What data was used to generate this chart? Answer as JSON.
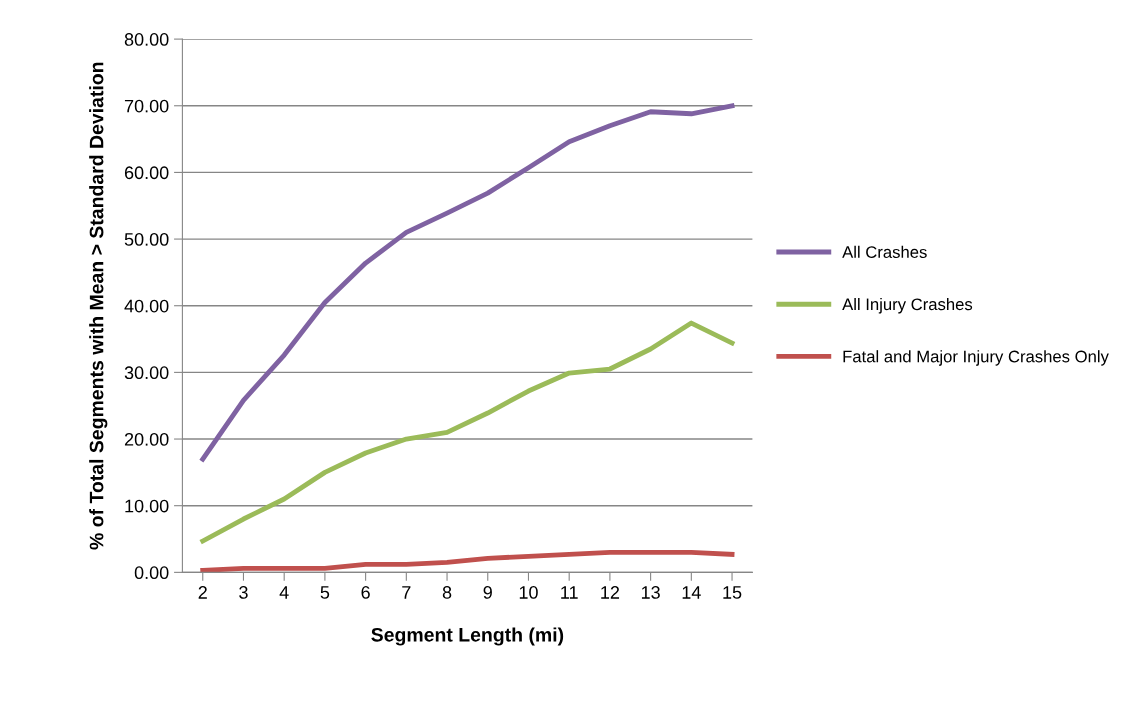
{
  "chart_data": {
    "type": "line",
    "xlabel": "Segment Length (mi)",
    "ylabel": "% of Total Segments with Mean > Standard Deviation",
    "categories": [
      "2",
      "3",
      "4",
      "5",
      "6",
      "7",
      "8",
      "9",
      "10",
      "11",
      "12",
      "13",
      "14",
      "15"
    ],
    "series": [
      {
        "name": "All Crashes",
        "color": "#7f62a2",
        "values": [
          17.0,
          25.8,
          32.6,
          40.5,
          46.4,
          51.0,
          53.9,
          56.9,
          60.7,
          64.6,
          67.0,
          69.1,
          68.8,
          70.0
        ]
      },
      {
        "name": "All Injury Crashes",
        "color": "#9bbb59",
        "values": [
          4.7,
          8.0,
          11.0,
          15.0,
          17.9,
          20.0,
          21.0,
          23.9,
          27.2,
          29.9,
          30.5,
          33.5,
          37.4,
          34.4
        ]
      },
      {
        "name": "Fatal and Major Injury Crashes Only",
        "color": "#c0504d",
        "values": [
          0.3,
          0.6,
          0.6,
          0.6,
          1.2,
          1.2,
          1.5,
          2.1,
          2.4,
          2.7,
          3.0,
          3.0,
          3.0,
          2.7
        ]
      }
    ],
    "ylim": [
      0,
      80
    ],
    "yticks": [
      {
        "value": 0,
        "label": "0.00"
      },
      {
        "value": 10,
        "label": "10.00"
      },
      {
        "value": 20,
        "label": "20.00"
      },
      {
        "value": 30,
        "label": "30.00"
      },
      {
        "value": 40,
        "label": "40.00"
      },
      {
        "value": 50,
        "label": "50.00"
      },
      {
        "value": 60,
        "label": "60.00"
      },
      {
        "value": 70,
        "label": "70.00"
      },
      {
        "value": 80,
        "label": "80.00"
      }
    ],
    "grid": "y",
    "legend": "right",
    "marker": "none",
    "line_style": "solid"
  }
}
